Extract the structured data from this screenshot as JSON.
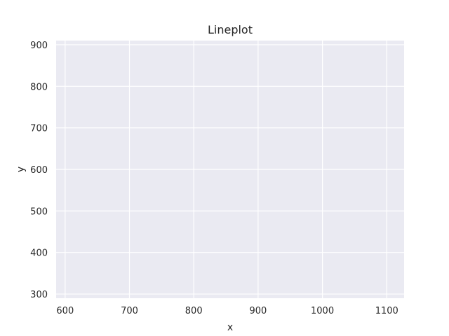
{
  "chart_data": {
    "type": "line",
    "title": "Lineplot",
    "xlabel": "x",
    "ylabel": "y",
    "xlim": [
      586,
      1127
    ],
    "ylim": [
      290,
      910
    ],
    "x_ticks": [
      600,
      700,
      800,
      900,
      1000,
      1100
    ],
    "y_ticks": [
      300,
      400,
      500,
      600,
      700,
      800,
      900
    ],
    "grid": true,
    "legend": "none",
    "series": [],
    "colors": {
      "plot_background": "#eaeaf2",
      "grid": "#ffffff",
      "text": "#262626"
    }
  }
}
